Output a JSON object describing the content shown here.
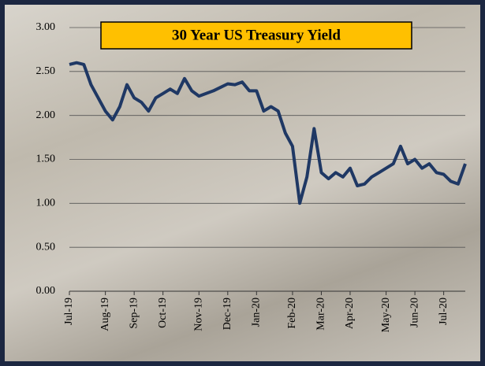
{
  "chart_data": {
    "type": "line",
    "title": "30 Year US Treasury Yield",
    "categories": [
      "Jul-19",
      null,
      null,
      null,
      null,
      "Aug-19",
      null,
      null,
      null,
      "Sep-19",
      null,
      null,
      null,
      "Oct-19",
      null,
      null,
      null,
      null,
      "Nov-19",
      null,
      null,
      null,
      "Dec-19",
      null,
      null,
      null,
      "Jan-20",
      null,
      null,
      null,
      null,
      "Feb-20",
      null,
      null,
      null,
      "Mar-20",
      null,
      null,
      null,
      "Apr-20",
      null,
      null,
      null,
      null,
      "May-20",
      null,
      null,
      null,
      "Jun-20",
      null,
      null,
      null,
      "Jul-20",
      null,
      null,
      null
    ],
    "values": [
      2.58,
      2.6,
      2.58,
      2.35,
      2.2,
      2.05,
      1.95,
      2.1,
      2.35,
      2.2,
      2.15,
      2.05,
      2.2,
      2.25,
      2.3,
      2.25,
      2.42,
      2.28,
      2.22,
      2.25,
      2.28,
      2.32,
      2.36,
      2.35,
      2.38,
      2.28,
      2.28,
      2.05,
      2.1,
      2.05,
      1.8,
      1.65,
      1.0,
      1.3,
      1.85,
      1.35,
      1.28,
      1.35,
      1.3,
      1.4,
      1.2,
      1.22,
      1.3,
      1.35,
      1.4,
      1.45,
      1.65,
      1.45,
      1.5,
      1.4,
      1.45,
      1.35,
      1.33,
      1.25,
      1.22,
      1.45
    ],
    "color": "#1f3864",
    "ylim": [
      0,
      3
    ],
    "yticks": [
      {
        "value": 0,
        "label": "0.00"
      },
      {
        "value": 0.5,
        "label": "0.50"
      },
      {
        "value": 1,
        "label": "1.00"
      },
      {
        "value": 1.5,
        "label": "1.50"
      },
      {
        "value": 2,
        "label": "2.00"
      },
      {
        "value": 2.5,
        "label": "2.50"
      },
      {
        "value": 3,
        "label": "3.00"
      }
    ],
    "grid": true
  }
}
